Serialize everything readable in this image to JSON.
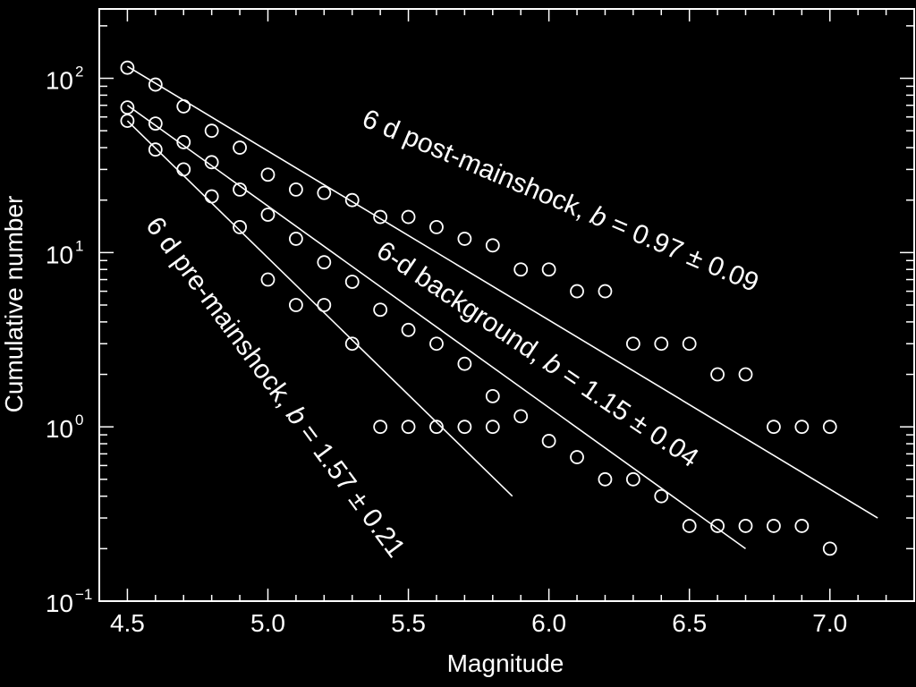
{
  "chart_data": {
    "type": "scatter",
    "xlabel": "Magnitude",
    "ylabel": "Cumulative number",
    "xlim": [
      4.4,
      7.3
    ],
    "ylim": [
      0.1,
      250
    ],
    "yscale": "log",
    "x_ticks": [
      {
        "value": 4.5,
        "label": "4.5"
      },
      {
        "value": 5.0,
        "label": "5.0"
      },
      {
        "value": 5.5,
        "label": "5.5"
      },
      {
        "value": 6.0,
        "label": "6.0"
      },
      {
        "value": 6.5,
        "label": "6.5"
      },
      {
        "value": 7.0,
        "label": "7.0"
      }
    ],
    "y_ticks": [
      {
        "value": 0.1,
        "base": "10",
        "exp": "−1"
      },
      {
        "value": 1,
        "base": "10",
        "exp": "0"
      },
      {
        "value": 10,
        "base": "10",
        "exp": "1"
      },
      {
        "value": 100,
        "base": "10",
        "exp": "2"
      }
    ],
    "grid": false,
    "colors": {
      "background": "#000000",
      "foreground": "#ffffff"
    },
    "series": [
      {
        "id": "post",
        "label": "6 d post-mainshock, b = 0.97 ± 0.09",
        "label_parts": [
          "6 d post-mainshock, ",
          "b",
          " = 0.97 ± 0.09"
        ],
        "x": [
          4.5,
          4.6,
          4.7,
          4.8,
          4.9,
          5.0,
          5.1,
          5.2,
          5.3,
          5.4,
          5.5,
          5.6,
          5.7,
          5.8,
          5.9,
          6.0,
          6.1,
          6.2,
          6.3,
          6.4,
          6.5,
          6.6,
          6.7,
          6.8,
          6.9,
          7.0
        ],
        "y": [
          115,
          92,
          69,
          50,
          40,
          28,
          23,
          22,
          20,
          16,
          16,
          14,
          12,
          11,
          8,
          8,
          6,
          6,
          3,
          3,
          3,
          2,
          2,
          1,
          1,
          1
        ],
        "fit": {
          "x": [
            4.5,
            7.17
          ],
          "y": [
            117,
            0.3
          ]
        }
      },
      {
        "id": "background",
        "label": "6-d background, b = 1.15 ± 0.04",
        "label_parts": [
          "6-d background, ",
          "b",
          " = 1.15 ± 0.04"
        ],
        "x": [
          4.5,
          4.6,
          4.7,
          4.8,
          4.9,
          5.0,
          5.1,
          5.2,
          5.3,
          5.4,
          5.5,
          5.6,
          5.7,
          5.8,
          5.9,
          6.0,
          6.1,
          6.2,
          6.3,
          6.4,
          6.5,
          6.6,
          6.7,
          6.8,
          6.9,
          7.0
        ],
        "y": [
          68,
          55,
          43,
          33,
          23,
          16.5,
          12,
          8.8,
          6.8,
          4.7,
          3.6,
          3.0,
          2.3,
          1.5,
          1.15,
          0.83,
          0.67,
          0.5,
          0.5,
          0.4,
          0.27,
          0.27,
          0.27,
          0.27,
          0.27,
          0.2
        ],
        "fit": {
          "x": [
            4.5,
            6.7
          ],
          "y": [
            70,
            0.2
          ]
        }
      },
      {
        "id": "pre",
        "label": "6 d pre-mainshock, b = 1.57 ± 0.21",
        "label_parts": [
          "6 d pre-mainshock, ",
          "b",
          " = 1.57 ± 0.21"
        ],
        "x": [
          4.5,
          4.6,
          4.7,
          4.8,
          4.9,
          5.0,
          5.1,
          5.2,
          5.3,
          5.4,
          5.5,
          5.6,
          5.7,
          5.8
        ],
        "y": [
          57,
          39,
          30,
          21,
          14,
          7,
          5,
          5,
          3,
          1,
          1,
          1,
          1,
          1
        ],
        "fit": {
          "x": [
            4.5,
            5.87
          ],
          "y": [
            57,
            0.4
          ]
        }
      }
    ]
  }
}
